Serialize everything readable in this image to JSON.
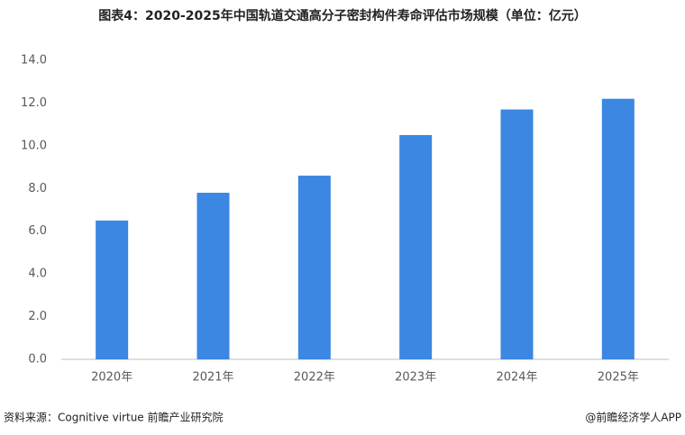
{
  "chart_data": {
    "type": "bar",
    "title": "图表4：2020-2025年中国轨道交通高分子密封构件寿命评估市场规模（单位：亿元）",
    "categories": [
      "2020年",
      "2021年",
      "2022年",
      "2023年",
      "2024年",
      "2025年"
    ],
    "values": [
      6.5,
      7.8,
      8.6,
      10.5,
      11.7,
      12.2
    ],
    "color": "#3b87e2",
    "ylim": [
      0,
      14
    ],
    "yticks": [
      {
        "value": 0,
        "label": "0.0"
      },
      {
        "value": 2,
        "label": "2.0"
      },
      {
        "value": 4,
        "label": "4.0"
      },
      {
        "value": 6,
        "label": "6.0"
      },
      {
        "value": 8,
        "label": "8.0"
      },
      {
        "value": 10,
        "label": "10.0"
      },
      {
        "value": 12,
        "label": "12.0"
      },
      {
        "value": 14,
        "label": "14.0"
      }
    ],
    "grid": false,
    "source": "资料来源：Cognitive virtue  前瞻产业研究院",
    "credit": "@前瞻经济学人APP"
  }
}
